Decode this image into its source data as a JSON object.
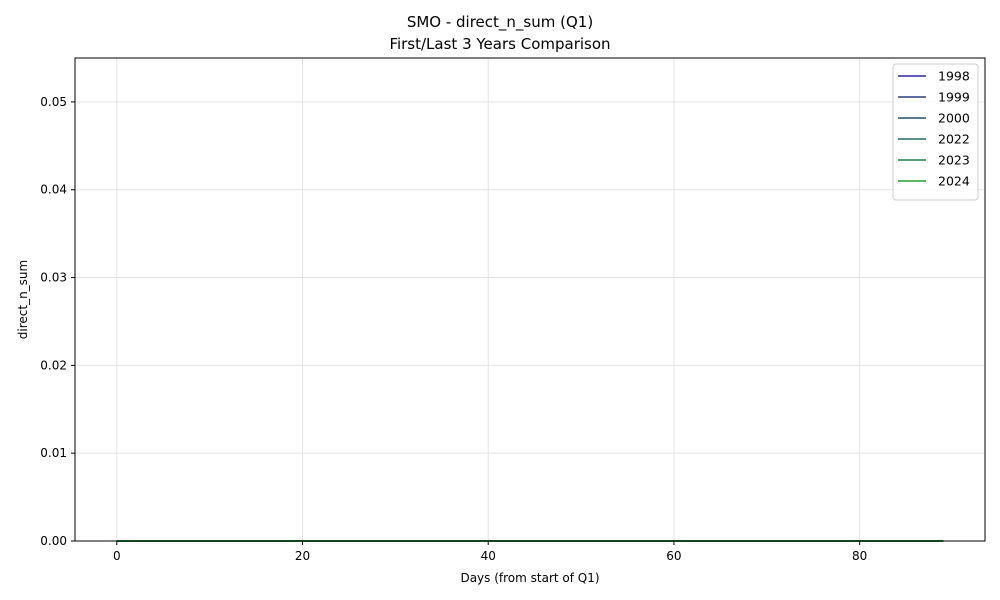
{
  "chart_data": {
    "type": "line",
    "title": "SMO - direct_n_sum (Q1)",
    "subtitle": "First/Last 3 Years Comparison",
    "xlabel": "Days (from start of Q1)",
    "ylabel": "direct_n_sum",
    "xlim": [
      -4.5,
      93.5
    ],
    "ylim": [
      0,
      0.055
    ],
    "xticks": [
      0,
      20,
      40,
      60,
      80
    ],
    "xtick_labels": [
      "0",
      "20",
      "40",
      "60",
      "80"
    ],
    "yticks": [
      0.0,
      0.01,
      0.02,
      0.03,
      0.04,
      0.05
    ],
    "ytick_labels": [
      "0.00",
      "0.01",
      "0.02",
      "0.03",
      "0.04",
      "0.05"
    ],
    "grid": true,
    "legend_position": "top-right",
    "series": [
      {
        "name": "1998",
        "color": "#2b2ba6",
        "x_range": [
          0,
          89
        ],
        "values": "all 0"
      },
      {
        "name": "1999",
        "color": "#263d80",
        "x_range": [
          0,
          89
        ],
        "values": "all 0"
      },
      {
        "name": "2000",
        "color": "#24516a",
        "x_range": [
          0,
          89
        ],
        "values": "all 0"
      },
      {
        "name": "2022",
        "color": "#1f6e60",
        "x_range": [
          0,
          89
        ],
        "values": "all 0"
      },
      {
        "name": "2023",
        "color": "#1f843f",
        "x_range": [
          0,
          89
        ],
        "values": "all 0"
      },
      {
        "name": "2024",
        "color": "#22a02a",
        "x_range": [
          0,
          89
        ],
        "values": "all 0"
      }
    ]
  }
}
